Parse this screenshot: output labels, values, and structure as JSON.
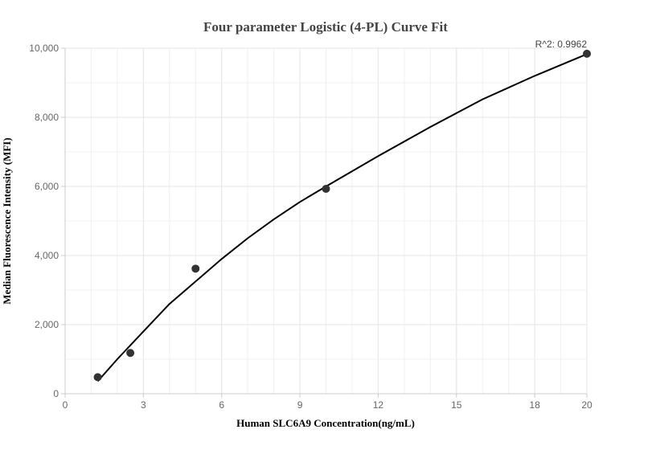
{
  "chart_data": {
    "type": "scatter",
    "title": "Four parameter Logistic (4-PL) Curve Fit",
    "xlabel": "Human SLC6A9 Concentration(ng/mL)",
    "ylabel": "Median Fluorescence Intensity (MFI)",
    "xlim": [
      0,
      20
    ],
    "ylim": [
      0,
      10000
    ],
    "x_ticks": [
      0,
      3,
      6,
      9,
      12,
      15,
      18,
      20
    ],
    "x_tick_labels": [
      "0",
      "3",
      "6",
      "9",
      "12",
      "15",
      "18",
      "20"
    ],
    "y_ticks": [
      0,
      2000,
      4000,
      6000,
      8000,
      10000
    ],
    "y_tick_labels": [
      "0",
      "2,000",
      "4,000",
      "6,000",
      "8,000",
      "10,000"
    ],
    "grid": true,
    "points": {
      "x": [
        1.25,
        2.5,
        5,
        10,
        20
      ],
      "y": [
        480,
        1180,
        3620,
        5930,
        9840
      ]
    },
    "fit_curve": {
      "x": [
        1.25,
        2,
        3,
        4,
        5,
        6,
        7,
        8,
        9,
        10,
        12,
        14,
        16,
        18,
        20
      ],
      "y": [
        360,
        1000,
        1800,
        2600,
        3250,
        3900,
        4500,
        5050,
        5550,
        6000,
        6880,
        7720,
        8520,
        9200,
        9830
      ]
    },
    "annotation": "R^2: 0.9962",
    "colors": {
      "points": "#333333",
      "curve": "#000000",
      "grid": "#e6e6e6",
      "axis": "#cccccc"
    }
  }
}
